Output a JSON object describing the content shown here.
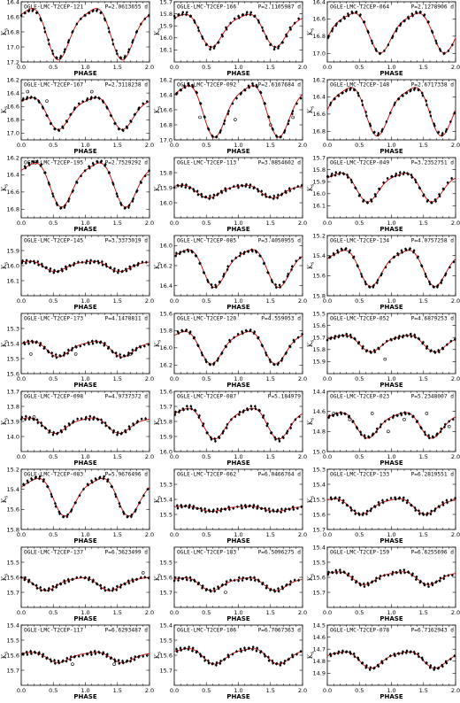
{
  "xlabel": "PHASE",
  "ylabel": "K",
  "ylabel_sub": "s",
  "chart_data": [
    {
      "type": "scatter",
      "title": "OGLE-LMC-T2CEP-121",
      "period": "P=2.0613655 d",
      "mean": 16.78,
      "amp": 0.4,
      "phase0": 0.6,
      "ylim": [
        16.4,
        17.2
      ],
      "yticks": [
        16.4,
        16.6,
        16.8,
        17.0,
        17.2
      ],
      "outliers": []
    },
    {
      "type": "scatter",
      "title": "OGLE-LMC-T2CEP-166",
      "period": "P=2.1105987 d",
      "mean": 15.92,
      "amp": 0.16,
      "phase0": 0.6,
      "ylim": [
        15.7,
        16.2
      ],
      "yticks": [
        15.7,
        15.8,
        15.9,
        16.0,
        16.1
      ],
      "outliers": []
    },
    {
      "type": "scatter",
      "title": "OGLE-LMC-T2CEP-064",
      "period": "P=2.1278906 d",
      "mean": 16.73,
      "amp": 0.27,
      "phase0": 0.85,
      "ylim": [
        16.4,
        17.1
      ],
      "yticks": [
        16.4,
        16.6,
        16.8,
        17.0
      ],
      "outliers": []
    },
    {
      "type": "scatter",
      "title": "OGLE-LMC-T2CEP-167",
      "period": "P=2.3118238 d",
      "mean": 16.67,
      "amp": 0.28,
      "phase0": 0.6,
      "ylim": [
        16.2,
        17.1
      ],
      "yticks": [
        16.2,
        16.4,
        16.6,
        16.8,
        17.0
      ],
      "outliers": [
        [
          0.1,
          16.38
        ],
        [
          0.4,
          16.52
        ],
        [
          1.1,
          16.38
        ]
      ]
    },
    {
      "type": "scatter",
      "title": "OGLE-LMC-T2CEP-092",
      "period": "P=2.6167684 d",
      "mean": 16.57,
      "amp": 0.4,
      "phase0": 0.65,
      "ylim": [
        16.2,
        17.0
      ],
      "yticks": [
        16.2,
        16.4,
        16.6,
        16.8,
        17.0
      ],
      "outliers": [
        [
          0.4,
          16.7
        ],
        [
          0.95,
          16.73
        ],
        [
          1.5,
          16.8
        ],
        [
          1.85,
          16.7
        ]
      ]
    },
    {
      "type": "scatter",
      "title": "OGLE-LMC-T2CEP-148",
      "period": "P=2.6717338 d",
      "mean": 16.53,
      "amp": 0.33,
      "phase0": 0.8,
      "ylim": [
        16.2,
        16.9
      ],
      "yticks": [
        16.2,
        16.4,
        16.6,
        16.8
      ],
      "outliers": []
    },
    {
      "type": "scatter",
      "title": "OGLE-LMC-T2CEP-195",
      "period": "P=2.7529292 d",
      "mean": 16.48,
      "amp": 0.3,
      "phase0": 0.65,
      "ylim": [
        16.2,
        16.9
      ],
      "yticks": [
        16.2,
        16.4,
        16.6,
        16.8
      ],
      "outliers": []
    },
    {
      "type": "scatter",
      "title": "OGLE-LMC-T2CEP-113",
      "period": "P=3.0854602 d",
      "mean": 15.92,
      "amp": 0.05,
      "phase0": 0.55,
      "ylim": [
        15.7,
        16.1
      ],
      "yticks": [
        15.8,
        15.9,
        16.0
      ],
      "outliers": []
    },
    {
      "type": "scatter",
      "title": "OGLE-LMC-T2CEP-049",
      "period": "P=3.2352751 d",
      "mean": 15.93,
      "amp": 0.14,
      "phase0": 0.65,
      "ylim": [
        15.7,
        16.2
      ],
      "yticks": [
        15.7,
        15.8,
        15.9,
        16.0,
        16.1
      ],
      "outliers": []
    },
    {
      "type": "scatter",
      "title": "OGLE-LMC-T2CEP-145",
      "period": "P=3.3373019 d",
      "mean": 16.0,
      "amp": 0.04,
      "phase0": 0.55,
      "ylim": [
        15.8,
        16.2
      ],
      "yticks": [
        15.9,
        16.0,
        16.1
      ],
      "outliers": []
    },
    {
      "type": "scatter",
      "title": "OGLE-LMC-T2CEP-085",
      "period": "P=3.4050955 d",
      "mean": 16.2,
      "amp": 0.22,
      "phase0": 0.65,
      "ylim": [
        15.9,
        16.5
      ],
      "yticks": [
        16.0,
        16.2,
        16.4
      ],
      "outliers": []
    },
    {
      "type": "scatter",
      "title": "OGLE-LMC-T2CEP-134",
      "period": "P=4.0757258 d",
      "mean": 15.5,
      "amp": 0.21,
      "phase0": 0.7,
      "ylim": [
        15.2,
        15.8
      ],
      "yticks": [
        15.2,
        15.4,
        15.6,
        15.8
      ],
      "outliers": []
    },
    {
      "type": "scatter",
      "title": "OGLE-LMC-T2CEP-173",
      "period": "P=4.1478811 d",
      "mean": 15.43,
      "amp": 0.06,
      "phase0": 0.6,
      "ylim": [
        15.2,
        15.6
      ],
      "yticks": [
        15.3,
        15.4,
        15.5,
        15.6
      ],
      "outliers": [
        [
          0.15,
          15.47
        ],
        [
          0.85,
          15.47
        ],
        [
          1.7,
          15.47
        ]
      ]
    },
    {
      "type": "scatter",
      "title": "OGLE-LMC-T2CEP-120",
      "period": "P=4.559053 d",
      "mean": 15.97,
      "amp": 0.22,
      "phase0": 0.6,
      "ylim": [
        15.6,
        16.3
      ],
      "yticks": [
        15.6,
        15.8,
        16.0,
        16.2
      ],
      "outliers": []
    },
    {
      "type": "scatter",
      "title": "OGLE-LMC-T2CEP-052",
      "period": "P=4.6879253 d",
      "mean": 15.74,
      "amp": 0.08,
      "phase0": 0.7,
      "ylim": [
        15.5,
        16.0
      ],
      "yticks": [
        15.5,
        15.6,
        15.7,
        15.8,
        15.9
      ],
      "outliers": [
        [
          0.9,
          15.88
        ]
      ]
    },
    {
      "type": "scatter",
      "title": "OGLE-LMC-T2CEP-098",
      "period": "P=4.9737372 d",
      "mean": 13.92,
      "amp": 0.06,
      "phase0": 0.55,
      "ylim": [
        13.7,
        14.1
      ],
      "yticks": [
        13.7,
        13.8,
        13.9,
        14.0
      ],
      "outliers": [
        [
          0.2,
          13.87
        ]
      ]
    },
    {
      "type": "scatter",
      "title": "OGLE-LMC-T2CEP-087",
      "period": "P=5.184979",
      "mean": 15.8,
      "amp": 0.12,
      "phase0": 0.65,
      "ylim": [
        15.6,
        16.0
      ],
      "yticks": [
        15.6,
        15.7,
        15.8,
        15.9,
        16.0
      ],
      "outliers": []
    },
    {
      "type": "scatter",
      "title": "OGLE-LMC-T2CEP-023",
      "period": "P=5.2348007 d",
      "mean": 14.72,
      "amp": 0.15,
      "phase0": 0.65,
      "ylim": [
        14.4,
        15.0
      ],
      "yticks": [
        14.4,
        14.6,
        14.8,
        15.0
      ],
      "outliers": [
        [
          0.1,
          14.62
        ],
        [
          0.35,
          14.68
        ],
        [
          0.7,
          14.62
        ],
        [
          0.95,
          14.8
        ],
        [
          1.2,
          14.68
        ],
        [
          1.55,
          14.62
        ],
        [
          1.9,
          14.75
        ]
      ]
    },
    {
      "type": "scatter",
      "title": "OGLE-LMC-T2CEP-083",
      "period": "P=5.9676496 d",
      "mean": 15.45,
      "amp": 0.22,
      "phase0": 0.7,
      "ylim": [
        15.2,
        15.8
      ],
      "yticks": [
        15.2,
        15.4,
        15.6,
        15.8
      ],
      "outliers": []
    },
    {
      "type": "scatter",
      "title": "OGLE-LMC-T2CEP-062",
      "period": "P=6.0466764 d",
      "mean": 15.46,
      "amp": 0.02,
      "phase0": 0.6,
      "ylim": [
        15.2,
        15.6
      ],
      "yticks": [
        15.3,
        15.4,
        15.5
      ],
      "outliers": []
    },
    {
      "type": "scatter",
      "title": "OGLE-LMC-T2CEP-133",
      "period": "P=6.2819551 d",
      "mean": 15.54,
      "amp": 0.06,
      "phase0": 0.55,
      "ylim": [
        15.3,
        15.7
      ],
      "yticks": [
        15.3,
        15.4,
        15.5,
        15.6,
        15.7
      ],
      "outliers": []
    },
    {
      "type": "scatter",
      "title": "OGLE-LMC-T2CEP-137",
      "period": "P=6.3623499 d",
      "mean": 15.64,
      "amp": 0.05,
      "phase0": 0.4,
      "ylim": [
        15.4,
        15.8
      ],
      "yticks": [
        15.5,
        15.6,
        15.7
      ],
      "outliers": [
        [
          1.9,
          15.57
        ]
      ]
    },
    {
      "type": "scatter",
      "title": "OGLE-LMC-T2CEP-183",
      "period": "P=6.5096275 d",
      "mean": 15.64,
      "amp": 0.05,
      "phase0": 0.6,
      "ylim": [
        15.4,
        15.8
      ],
      "yticks": [
        15.5,
        15.6,
        15.7
      ],
      "outliers": [
        [
          0.8,
          15.7
        ]
      ]
    },
    {
      "type": "scatter",
      "title": "OGLE-LMC-T2CEP-159",
      "period": "P=6.6255696 d",
      "mean": 15.6,
      "amp": 0.05,
      "phase0": 0.6,
      "ylim": [
        15.4,
        15.8
      ],
      "yticks": [
        15.4,
        15.5,
        15.6,
        15.7
      ],
      "outliers": []
    },
    {
      "type": "scatter",
      "title": "OGLE-LMC-T2CEP-117",
      "period": "P=6.6293487 d",
      "mean": 15.61,
      "amp": 0.04,
      "phase0": 0.6,
      "ylim": [
        15.4,
        15.8
      ],
      "yticks": [
        15.4,
        15.5,
        15.6,
        15.7
      ],
      "outliers": [
        [
          0.8,
          15.66
        ],
        [
          1.45,
          15.66
        ]
      ]
    },
    {
      "type": "scatter",
      "title": "OGLE-LMC-T2CEP-106",
      "period": "P=6.7067363 d",
      "mean": 15.6,
      "amp": 0.06,
      "phase0": 0.65,
      "ylim": [
        15.4,
        15.8
      ],
      "yticks": [
        15.4,
        15.5,
        15.6,
        15.7
      ],
      "outliers": []
    },
    {
      "type": "scatter",
      "title": "OGLE-LMC-T2CEP-078",
      "period": "P=6.7162943 d",
      "mean": 14.78,
      "amp": 0.08,
      "phase0": 0.7,
      "ylim": [
        14.5,
        15.0
      ],
      "yticks": [
        14.5,
        14.6,
        14.7,
        14.8,
        14.9
      ],
      "outliers": []
    }
  ]
}
